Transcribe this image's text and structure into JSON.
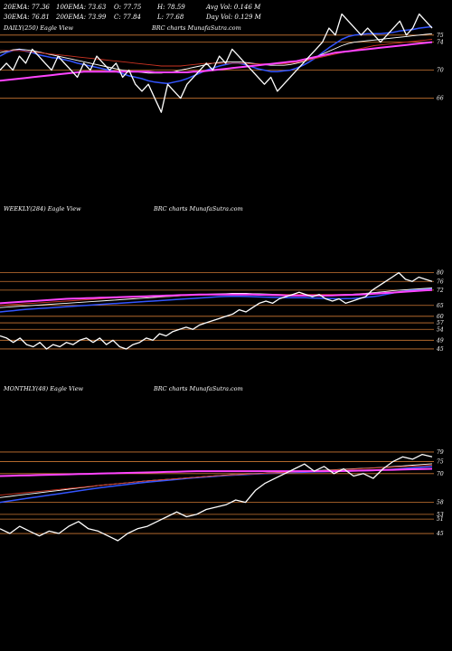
{
  "header": {
    "row1": [
      "20EMA: 77.36",
      "100EMA: 73.63",
      "O: 77.75",
      "H: 78.59",
      "Avg Vol: 0.146  M"
    ],
    "row2": [
      "30EMA: 76.81",
      "200EMA: 73.99",
      "C: 77.84",
      "L: 77.68",
      "Day Vol: 0.129 M"
    ]
  },
  "panels": [
    {
      "name": "daily",
      "label": "DAILY(250) Eagle  View",
      "credit": "BRC charts MunafaSutra.com"
    },
    {
      "name": "weekly",
      "label": "WEEKLY(284) Eagle  View",
      "credit": "BRC charts MunafaSutra.com"
    },
    {
      "name": "monthly",
      "label": "MONTHLY(48) Eagle  View",
      "credit": "BRC charts MunafaSutra.com"
    }
  ],
  "colors": {
    "background": "#000000",
    "price": "#ffffff",
    "ema_fast": "#3355ff",
    "ema_mid": "#ffffff",
    "ema_slow": "#ff44ff",
    "ema_red": "#cc3322",
    "grid": "#cc7733"
  },
  "chart_data": [
    {
      "type": "line",
      "panel": "daily",
      "ylim": [
        63,
        80
      ],
      "y_ticks": [
        75,
        74,
        70,
        66
      ],
      "price": [
        70,
        71,
        70,
        72,
        71,
        73,
        72,
        71,
        70,
        72,
        71,
        70,
        69,
        71,
        70,
        72,
        71,
        70,
        71,
        69,
        70,
        68,
        67,
        68,
        66,
        64,
        68,
        67,
        66,
        68,
        69,
        70,
        71,
        70,
        72,
        71,
        73,
        72,
        71,
        70,
        69,
        68,
        69,
        67,
        68,
        69,
        70,
        71,
        72,
        73,
        74,
        76,
        75,
        78,
        77,
        76,
        75,
        76,
        75,
        74,
        75,
        76,
        77,
        75,
        76,
        78,
        77,
        76
      ],
      "series": [
        {
          "key": "ema_fast",
          "values": [
            72,
            72.5,
            72.8,
            73,
            72.7,
            72.5,
            72.2,
            72,
            71.8,
            71.7,
            71.5,
            71.3,
            71,
            70.8,
            70.6,
            70.4,
            70.2,
            70,
            69.8,
            69.5,
            69.2,
            69,
            68.8,
            68.5,
            68.3,
            68.2,
            68.1,
            68.3,
            68.5,
            68.8,
            69.2,
            69.6,
            70,
            70.3,
            70.6,
            70.8,
            71,
            71,
            70.8,
            70.5,
            70.2,
            70,
            69.8,
            69.8,
            69.9,
            70,
            70.3,
            70.7,
            71.2,
            71.8,
            72.5,
            73.2,
            73.8,
            74.4,
            74.8,
            75,
            75.1,
            75.2,
            75.2,
            75.2,
            75.3,
            75.4,
            75.6,
            75.7,
            75.8,
            76,
            76.1,
            76.2
          ]
        },
        {
          "key": "ema_mid",
          "values": [
            72.5,
            72.7,
            72.9,
            73,
            72.9,
            72.8,
            72.6,
            72.4,
            72.2,
            72,
            71.8,
            71.6,
            71.4,
            71.2,
            71,
            70.8,
            70.6,
            70.4,
            70.2,
            70,
            69.9,
            69.8,
            69.7,
            69.6,
            69.6,
            69.6,
            69.7,
            69.8,
            70,
            70.2,
            70.4,
            70.6,
            70.8,
            71,
            71.1,
            71.2,
            71.2,
            71.2,
            71.1,
            71,
            70.9,
            70.8,
            70.7,
            70.7,
            70.7,
            70.8,
            71,
            71.2,
            71.5,
            71.9,
            72.3,
            72.7,
            73.1,
            73.5,
            73.8,
            74,
            74.1,
            74.2,
            74.3,
            74.4,
            74.5,
            74.6,
            74.7,
            74.8,
            74.9,
            75,
            75.1,
            75.2
          ]
        },
        {
          "key": "ema_red",
          "values": [
            72.8,
            72.8,
            72.8,
            72.8,
            72.7,
            72.6,
            72.5,
            72.4,
            72.3,
            72.2,
            72.1,
            72,
            71.9,
            71.8,
            71.7,
            71.6,
            71.5,
            71.4,
            71.3,
            71.2,
            71.1,
            71,
            70.9,
            70.8,
            70.7,
            70.6,
            70.6,
            70.6,
            70.6,
            70.7,
            70.8,
            70.9,
            71,
            71,
            71,
            71,
            71,
            71,
            71,
            70.9,
            70.9,
            70.9,
            70.9,
            70.9,
            70.9,
            71,
            71.1,
            71.3,
            71.5,
            71.7,
            71.9,
            72.1,
            72.3,
            72.5,
            72.7,
            72.9,
            73.1,
            73.3,
            73.5,
            73.6,
            73.7,
            73.8,
            73.9,
            74,
            74.1,
            74.2,
            74.3,
            74.4
          ]
        },
        {
          "key": "ema_slow",
          "values": [
            68.5,
            68.6,
            68.7,
            68.8,
            68.9,
            69,
            69.1,
            69.2,
            69.3,
            69.4,
            69.5,
            69.6,
            69.7,
            69.8,
            69.8,
            69.8,
            69.8,
            69.8,
            69.8,
            69.8,
            69.8,
            69.8,
            69.8,
            69.8,
            69.7,
            69.7,
            69.7,
            69.7,
            69.7,
            69.7,
            69.8,
            69.8,
            69.9,
            70,
            70.1,
            70.2,
            70.3,
            70.4,
            70.5,
            70.6,
            70.7,
            70.8,
            70.9,
            71,
            71.1,
            71.2,
            71.3,
            71.5,
            71.7,
            71.9,
            72.1,
            72.3,
            72.5,
            72.6,
            72.7,
            72.8,
            72.9,
            73,
            73.1,
            73.2,
            73.3,
            73.4,
            73.5,
            73.6,
            73.7,
            73.8,
            73.9,
            74
          ]
        }
      ],
      "hlines": [
        75,
        74,
        70,
        66
      ]
    },
    {
      "type": "line",
      "panel": "weekly",
      "ylim": [
        40,
        84
      ],
      "y_ticks": [
        80,
        76,
        72,
        65,
        60,
        57,
        54,
        49,
        45
      ],
      "price": [
        51,
        50,
        48,
        50,
        47,
        46,
        48,
        45,
        47,
        46,
        48,
        47,
        49,
        50,
        48,
        50,
        47,
        49,
        46,
        45,
        47,
        48,
        50,
        49,
        52,
        51,
        53,
        54,
        55,
        54,
        56,
        57,
        58,
        59,
        60,
        61,
        63,
        62,
        64,
        66,
        67,
        66,
        68,
        69,
        70,
        71,
        70,
        69,
        70,
        68,
        67,
        68,
        66,
        67,
        68,
        69,
        72,
        74,
        76,
        78,
        80,
        77,
        76,
        78,
        77,
        76
      ],
      "series": [
        {
          "key": "ema_fast",
          "values": [
            62,
            62.3,
            62.6,
            62.9,
            63.2,
            63.4,
            63.6,
            63.8,
            64,
            64.2,
            64.4,
            64.6,
            64.8,
            65,
            65.2,
            65.4,
            65.6,
            65.8,
            66,
            66.2,
            66.4,
            66.6,
            66.8,
            67,
            67.2,
            67.4,
            67.6,
            67.8,
            68,
            68.2,
            68.4,
            68.6,
            68.8,
            69,
            69.1,
            69.2,
            69.2,
            69.1,
            69,
            68.9,
            68.8,
            68.7,
            68.6,
            68.5,
            68.5,
            68.5,
            68.5,
            68.4,
            68.3,
            68.2,
            68.1,
            68,
            68.1,
            68.2,
            68.4,
            68.7,
            69,
            69.4,
            70,
            70.6,
            71.2,
            71.6,
            72,
            72.2,
            72.4,
            72.6
          ]
        },
        {
          "key": "ema_mid",
          "values": [
            64,
            64.2,
            64.4,
            64.6,
            64.8,
            65,
            65.2,
            65.4,
            65.6,
            65.8,
            66,
            66.2,
            66.4,
            66.6,
            66.8,
            67,
            67.2,
            67.4,
            67.6,
            67.8,
            68,
            68.2,
            68.4,
            68.6,
            68.8,
            69,
            69.2,
            69.4,
            69.6,
            69.8,
            70,
            70.1,
            70.2,
            70.3,
            70.4,
            70.5,
            70.5,
            70.5,
            70.4,
            70.3,
            70.2,
            70.1,
            70,
            69.9,
            69.9,
            69.9,
            69.9,
            69.9,
            69.9,
            69.9,
            69.9,
            69.9,
            70,
            70.1,
            70.3,
            70.5,
            70.8,
            71.1,
            71.4,
            71.7,
            72,
            72.2,
            72.4,
            72.6,
            72.8,
            73
          ]
        },
        {
          "key": "ema_red",
          "values": [
            65,
            65.2,
            65.4,
            65.6,
            65.8,
            66,
            66.2,
            66.4,
            66.6,
            66.8,
            67,
            67.2,
            67.4,
            67.6,
            67.8,
            68,
            68.2,
            68.4,
            68.5,
            68.6,
            68.7,
            68.8,
            68.9,
            69,
            69.1,
            69.2,
            69.3,
            69.4,
            69.5,
            69.6,
            69.7,
            69.8,
            69.9,
            70,
            70,
            70,
            70,
            70,
            70,
            70,
            70,
            70,
            70,
            70,
            70,
            70,
            70,
            70,
            70,
            70,
            70,
            70,
            70,
            70.1,
            70.2,
            70.3,
            70.4,
            70.5,
            70.7,
            70.9,
            71.1,
            71.3,
            71.5,
            71.7,
            71.9,
            72
          ]
        },
        {
          "key": "ema_slow",
          "values": [
            66,
            66.2,
            66.4,
            66.6,
            66.8,
            67,
            67.2,
            67.4,
            67.6,
            67.8,
            68,
            68.1,
            68.2,
            68.3,
            68.4,
            68.5,
            68.6,
            68.7,
            68.8,
            68.9,
            69,
            69.1,
            69.2,
            69.3,
            69.4,
            69.5,
            69.6,
            69.7,
            69.8,
            69.9,
            70,
            70,
            70,
            70,
            70,
            70,
            70,
            70,
            70,
            69.9,
            69.9,
            69.8,
            69.7,
            69.6,
            69.5,
            69.5,
            69.5,
            69.5,
            69.5,
            69.5,
            69.6,
            69.7,
            69.8,
            69.9,
            70,
            70.1,
            70.3,
            70.5,
            70.7,
            70.9,
            71.1,
            71.3,
            71.5,
            71.7,
            71.9,
            72.1
          ]
        }
      ],
      "hlines": [
        80,
        76,
        72,
        65,
        60,
        57,
        54,
        49,
        45
      ]
    },
    {
      "type": "line",
      "panel": "monthly",
      "ylim": [
        42,
        82
      ],
      "y_ticks": [
        79,
        75,
        70,
        58,
        53,
        51,
        45
      ],
      "price": [
        47,
        45,
        48,
        46,
        44,
        46,
        45,
        48,
        50,
        47,
        46,
        44,
        42,
        45,
        47,
        48,
        50,
        52,
        54,
        52,
        53,
        55,
        56,
        57,
        59,
        58,
        63,
        66,
        68,
        70,
        72,
        74,
        71,
        73,
        70,
        72,
        69,
        70,
        68,
        72,
        75,
        77,
        76,
        78,
        77
      ],
      "series": [
        {
          "key": "ema_fast",
          "values": [
            58,
            58.6,
            59.2,
            59.8,
            60.4,
            61,
            61.6,
            62.2,
            62.8,
            63.4,
            64,
            64.5,
            65,
            65.5,
            66,
            66.4,
            66.8,
            67.2,
            67.6,
            68,
            68.3,
            68.6,
            68.9,
            69.2,
            69.4,
            69.6,
            69.8,
            70,
            70.2,
            70.4,
            70.5,
            70.6,
            70.7,
            70.8,
            70.9,
            71,
            71.1,
            71.2,
            71.3,
            71.5,
            71.8,
            72.1,
            72.4,
            72.7,
            73
          ]
        },
        {
          "key": "ema_mid",
          "values": [
            60,
            60.5,
            61,
            61.5,
            62,
            62.5,
            63,
            63.5,
            64,
            64.5,
            65,
            65.4,
            65.8,
            66.2,
            66.6,
            67,
            67.3,
            67.6,
            67.9,
            68.2,
            68.5,
            68.8,
            69.1,
            69.4,
            69.6,
            69.8,
            70,
            70.2,
            70.4,
            70.6,
            70.8,
            71,
            71.2,
            71.4,
            71.6,
            71.8,
            72,
            72.2,
            72.4,
            72.6,
            72.9,
            73.2,
            73.5,
            73.8,
            74.1
          ]
        },
        {
          "key": "ema_red",
          "values": [
            61,
            61.4,
            61.8,
            62.2,
            62.6,
            63,
            63.4,
            63.8,
            64.2,
            64.6,
            65,
            65.4,
            65.8,
            66.2,
            66.6,
            67,
            67.3,
            67.6,
            67.9,
            68.2,
            68.5,
            68.8,
            69.1,
            69.3,
            69.5,
            69.7,
            69.9,
            70.1,
            70.3,
            70.5,
            70.7,
            70.9,
            71.1,
            71.3,
            71.5,
            71.7,
            71.9,
            72.1,
            72.3,
            72.5,
            72.7,
            72.9,
            73.1,
            73.3,
            73.5
          ]
        },
        {
          "key": "ema_slow",
          "values": [
            69,
            69.1,
            69.2,
            69.3,
            69.4,
            69.5,
            69.6,
            69.7,
            69.8,
            69.9,
            70,
            70.1,
            70.2,
            70.3,
            70.4,
            70.5,
            70.6,
            70.7,
            70.8,
            70.9,
            71,
            71,
            71,
            71,
            71,
            71,
            71,
            71,
            71,
            71,
            71,
            71,
            71,
            71,
            71,
            71.1,
            71.2,
            71.3,
            71.4,
            71.5,
            71.6,
            71.7,
            71.8,
            71.9,
            72
          ]
        }
      ],
      "hlines": [
        79,
        75,
        70,
        58,
        53,
        51,
        45
      ]
    }
  ]
}
